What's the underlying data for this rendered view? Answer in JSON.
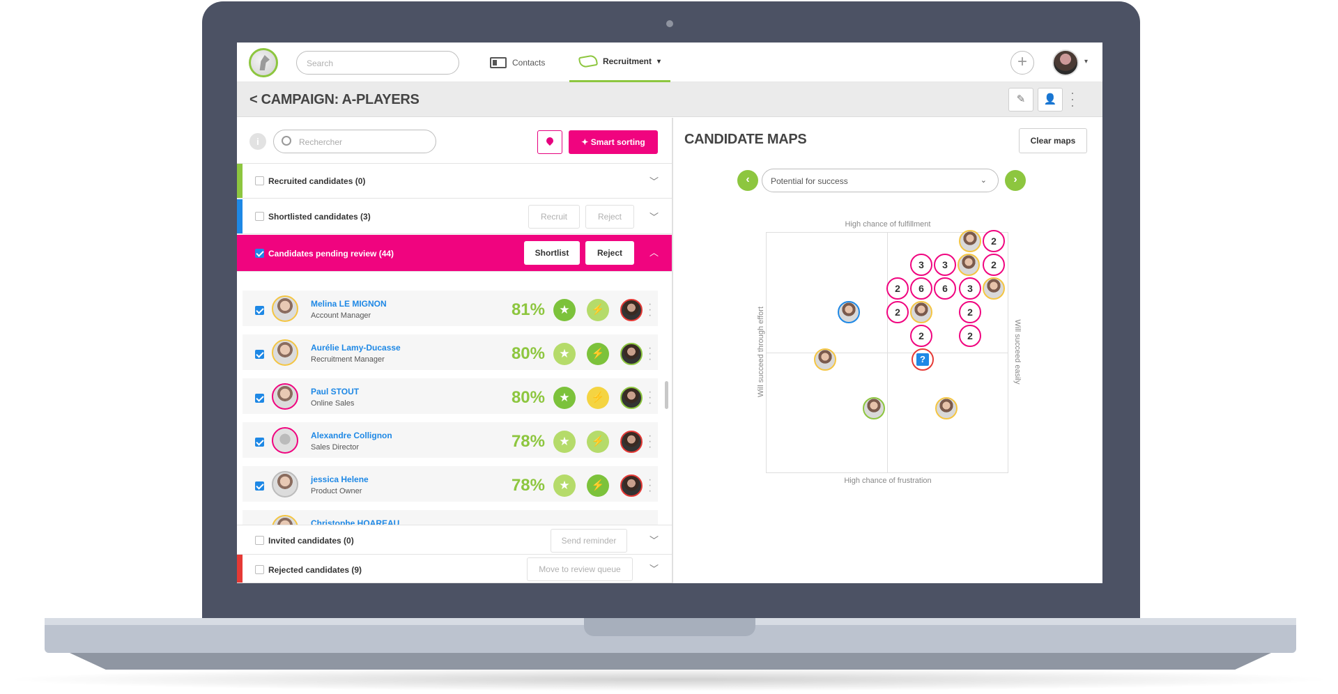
{
  "topbar": {
    "search_placeholder": "Search",
    "nav_contacts": "Contacts",
    "nav_recruitment": "Recruitment",
    "accent": "#8dc63f"
  },
  "campaign": {
    "title": "CAMPAIGN: A-PLAYERS"
  },
  "left": {
    "search_placeholder": "Rechercher",
    "smart_sorting": "Smart sorting",
    "sections": {
      "recruited": "Recruited candidates (0)",
      "shortlisted": "Shortlisted candidates (3)",
      "recruit_btn": "Recruit",
      "reject_btn": "Reject",
      "pending": "Candidates pending review (44)",
      "shortlist_btn": "Shortlist",
      "pending_reject_btn": "Reject",
      "invited": "Invited candidates (0)",
      "send_reminder": "Send reminder",
      "rejected": "Rejected candidates (9)",
      "move_queue": "Move to review queue"
    },
    "candidates": [
      {
        "name": "Melina LE MIGNON",
        "role": "Account Manager",
        "score": "81%"
      },
      {
        "name": "Aurélie Lamy-Ducasse",
        "role": "Recruitment Manager",
        "score": "80%"
      },
      {
        "name": "Paul STOUT",
        "role": "Online Sales",
        "score": "80%"
      },
      {
        "name": "Alexandre Collignon",
        "role": "Sales Director",
        "score": "78%"
      },
      {
        "name": "jessica Helene",
        "role": "Product Owner",
        "score": "78%"
      },
      {
        "name": "Christophe HOAREAU",
        "role": "",
        "score": ""
      }
    ],
    "colors": {
      "recruited": "#8dc63f",
      "shortlisted": "#1e88e5",
      "pending": "#f0047f",
      "rejected": "#e53935"
    }
  },
  "maps": {
    "title": "CANDIDATE MAPS",
    "clear_btn": "Clear maps",
    "selector": "Potential for success",
    "axis_top": "High chance of fulfillment",
    "axis_bottom": "High chance of frustration",
    "axis_left": "Will succeed through effort",
    "axis_right": "Will succeed easily",
    "clusters": [
      "2",
      "3",
      "3",
      "2",
      "2",
      "6",
      "6",
      "3",
      "2",
      "2",
      "2",
      "2"
    ]
  }
}
